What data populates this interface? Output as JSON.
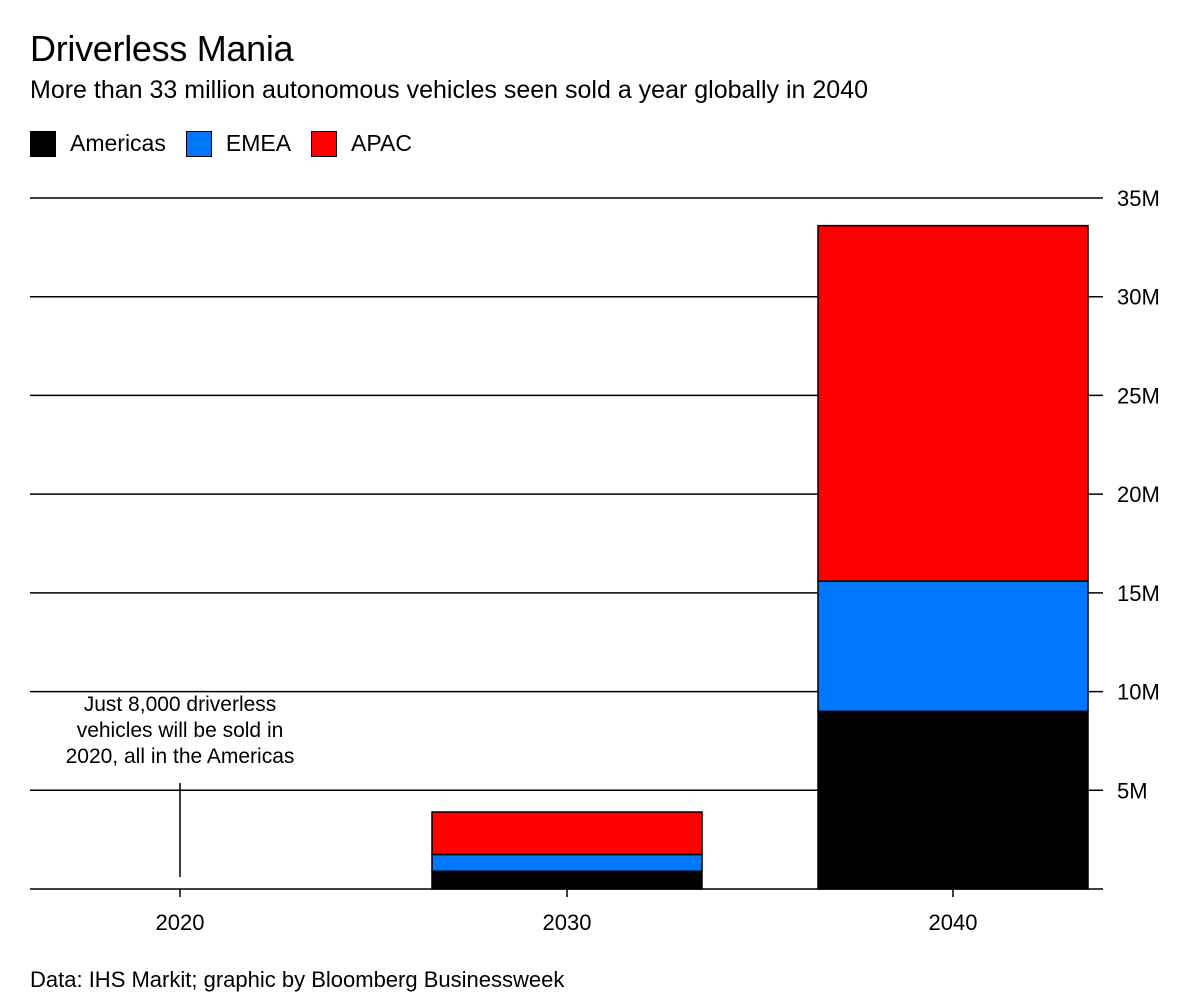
{
  "header": {
    "title": "Driverless Mania",
    "subtitle": "More than 33 million autonomous vehicles seen sold a year globally in 2040"
  },
  "legend": [
    {
      "label": "Americas",
      "color": "#000000"
    },
    {
      "label": "EMEA",
      "color": "#0277ff"
    },
    {
      "label": "APAC",
      "color": "#ff0000"
    }
  ],
  "annotation": {
    "lines": [
      "Just 8,000 driverless",
      "vehicles will be sold in",
      "2020, all in the Americas"
    ]
  },
  "footer": {
    "source": "Data: IHS Markit; graphic by Bloomberg Businessweek"
  },
  "chart_data": {
    "type": "bar",
    "stacked": true,
    "title": "Driverless Mania",
    "subtitle": "More than 33 million autonomous vehicles seen sold a year globally in 2040",
    "categories": [
      "2020",
      "2030",
      "2040"
    ],
    "series": [
      {
        "name": "Americas",
        "color": "#000000",
        "values": [
          0.008,
          0.9,
          9.0
        ]
      },
      {
        "name": "EMEA",
        "color": "#0277ff",
        "values": [
          0,
          0.85,
          6.6
        ]
      },
      {
        "name": "APAC",
        "color": "#ff0000",
        "values": [
          0,
          2.15,
          18.0
        ]
      }
    ],
    "unit": "M",
    "ylim": [
      0,
      35
    ],
    "yticks": [
      5,
      10,
      15,
      20,
      25,
      30,
      35
    ],
    "ytick_labels": [
      "5M",
      "10M",
      "15M",
      "20M",
      "25M",
      "30M",
      "35M"
    ],
    "y_axis_position": "right",
    "grid": true,
    "legend_position": "top-left",
    "xlabel": "",
    "ylabel": ""
  }
}
